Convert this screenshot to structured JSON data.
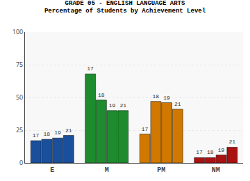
{
  "chart_data": {
    "type": "bar",
    "title": "GRADE 05 - ENGLISH LANGUAGE ARTS",
    "subtitle": "Percentage of Students by Achievement Level",
    "categories": [
      "E",
      "M",
      "PM",
      "NM"
    ],
    "series": [
      {
        "name": "17",
        "values": [
          17,
          68,
          22,
          4
        ],
        "colors": [
          "#1a4f9c",
          "#1e8c2e",
          "#d07800",
          "#aa1111"
        ]
      },
      {
        "name": "18",
        "values": [
          18,
          48,
          47,
          4
        ],
        "colors": [
          "#1a4f9c",
          "#1e8c2e",
          "#d07800",
          "#aa1111"
        ]
      },
      {
        "name": "19",
        "values": [
          19,
          40,
          46,
          6
        ],
        "colors": [
          "#1a4f9c",
          "#1e8c2e",
          "#d07800",
          "#aa1111"
        ]
      },
      {
        "name": "21",
        "values": [
          21,
          40,
          41,
          12
        ],
        "colors": [
          "#1a4f9c",
          "#1e8c2e",
          "#d07800",
          "#aa1111"
        ]
      }
    ],
    "ylim": [
      0,
      100
    ],
    "yticks": [
      0,
      25,
      50,
      75,
      100
    ],
    "grid": true
  }
}
